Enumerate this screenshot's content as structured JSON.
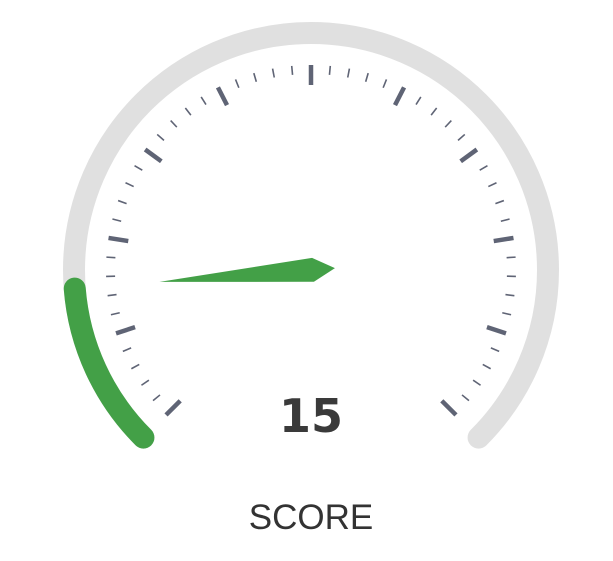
{
  "chart_data": {
    "type": "gauge",
    "value": 15,
    "min": 0,
    "max": 100,
    "label": "SCORE",
    "value_text": "15"
  },
  "colors": {
    "track": "#e0e0e0",
    "progress": "#43a047",
    "needle": "#43a047",
    "tick": "#5f6475",
    "value_text": "#3a3a3a",
    "label_text": "#333333"
  }
}
